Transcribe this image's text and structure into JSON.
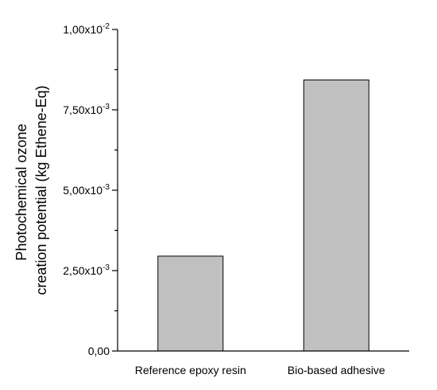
{
  "chart_data": {
    "type": "bar",
    "categories": [
      "Reference epoxy resin",
      "Bio-based adhesive"
    ],
    "values": [
      0.00295,
      0.00843
    ],
    "ylabel_lines": [
      "Photochemical ozone",
      "creation potential (kg Ethene-Eq)"
    ],
    "ylim": [
      0,
      0.01
    ],
    "yticks": [
      {
        "value": 0,
        "mant": "0,00",
        "exp": ""
      },
      {
        "value": 0.0025,
        "mant": "2,50x10",
        "exp": "-3"
      },
      {
        "value": 0.005,
        "mant": "5,00x10",
        "exp": "-3"
      },
      {
        "value": 0.0075,
        "mant": "7,50x10",
        "exp": "-3"
      },
      {
        "value": 0.01,
        "mant": "1,00x10",
        "exp": "-2"
      }
    ],
    "bar_color": "#c0c0c0",
    "grid": false
  }
}
